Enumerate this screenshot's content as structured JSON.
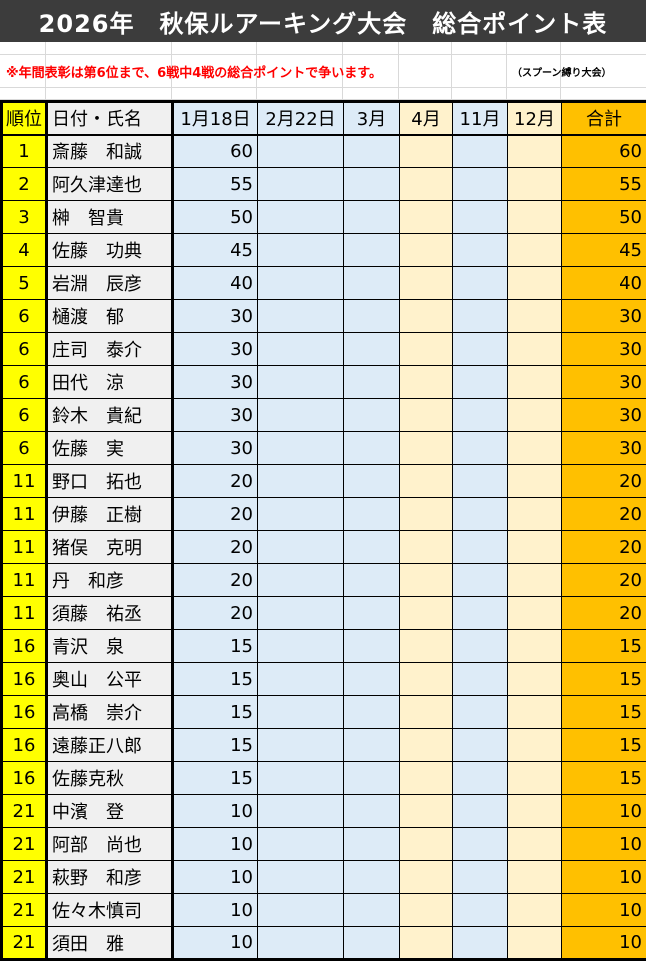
{
  "title": "2026年　秋保ルアーキング大会　総合ポイント表",
  "note": "※年間表彰は第6位まで、6戦中4戦の総合ポイントで争います。",
  "subnote": "（スプーン縛り大会）",
  "colors": {
    "title_bg": "#3c3c3c",
    "rank": "#ffff00",
    "name": "#f0f0f0",
    "blue": "#ddebf7",
    "cream": "#fff2cc",
    "total": "#ffc000",
    "note": "#ff0000"
  },
  "headers": [
    "順位",
    "日付・氏名",
    "1月18日",
    "2月22日",
    "3月",
    "4月",
    "11月",
    "12月",
    "合計"
  ],
  "rows": [
    [
      "1",
      "斎藤　和誠",
      "60",
      "",
      "",
      "",
      "",
      "",
      "60"
    ],
    [
      "2",
      "阿久津達也",
      "55",
      "",
      "",
      "",
      "",
      "",
      "55"
    ],
    [
      "3",
      "榊　智貴",
      "50",
      "",
      "",
      "",
      "",
      "",
      "50"
    ],
    [
      "4",
      "佐藤　功典",
      "45",
      "",
      "",
      "",
      "",
      "",
      "45"
    ],
    [
      "5",
      "岩淵　辰彦",
      "40",
      "",
      "",
      "",
      "",
      "",
      "40"
    ],
    [
      "6",
      "樋渡　郁",
      "30",
      "",
      "",
      "",
      "",
      "",
      "30"
    ],
    [
      "6",
      "庄司　泰介",
      "30",
      "",
      "",
      "",
      "",
      "",
      "30"
    ],
    [
      "6",
      "田代　涼",
      "30",
      "",
      "",
      "",
      "",
      "",
      "30"
    ],
    [
      "6",
      "鈴木　貴紀",
      "30",
      "",
      "",
      "",
      "",
      "",
      "30"
    ],
    [
      "6",
      "佐藤　実",
      "30",
      "",
      "",
      "",
      "",
      "",
      "30"
    ],
    [
      "11",
      "野口　拓也",
      "20",
      "",
      "",
      "",
      "",
      "",
      "20"
    ],
    [
      "11",
      "伊藤　正樹",
      "20",
      "",
      "",
      "",
      "",
      "",
      "20"
    ],
    [
      "11",
      "猪俣　克明",
      "20",
      "",
      "",
      "",
      "",
      "",
      "20"
    ],
    [
      "11",
      "丹　和彦",
      "20",
      "",
      "",
      "",
      "",
      "",
      "20"
    ],
    [
      "11",
      "須藤　祐丞",
      "20",
      "",
      "",
      "",
      "",
      "",
      "20"
    ],
    [
      "16",
      "青沢　泉",
      "15",
      "",
      "",
      "",
      "",
      "",
      "15"
    ],
    [
      "16",
      "奥山　公平",
      "15",
      "",
      "",
      "",
      "",
      "",
      "15"
    ],
    [
      "16",
      "高橋　崇介",
      "15",
      "",
      "",
      "",
      "",
      "",
      "15"
    ],
    [
      "16",
      "遠藤正八郎",
      "15",
      "",
      "",
      "",
      "",
      "",
      "15"
    ],
    [
      "16",
      "佐藤克秋",
      "15",
      "",
      "",
      "",
      "",
      "",
      "15"
    ],
    [
      "21",
      "中濱　登",
      "10",
      "",
      "",
      "",
      "",
      "",
      "10"
    ],
    [
      "21",
      "阿部　尚也",
      "10",
      "",
      "",
      "",
      "",
      "",
      "10"
    ],
    [
      "21",
      "萩野　和彦",
      "10",
      "",
      "",
      "",
      "",
      "",
      "10"
    ],
    [
      "21",
      "佐々木慎司",
      "10",
      "",
      "",
      "",
      "",
      "",
      "10"
    ],
    [
      "21",
      "須田　雅",
      "10",
      "",
      "",
      "",
      "",
      "",
      "10"
    ]
  ]
}
